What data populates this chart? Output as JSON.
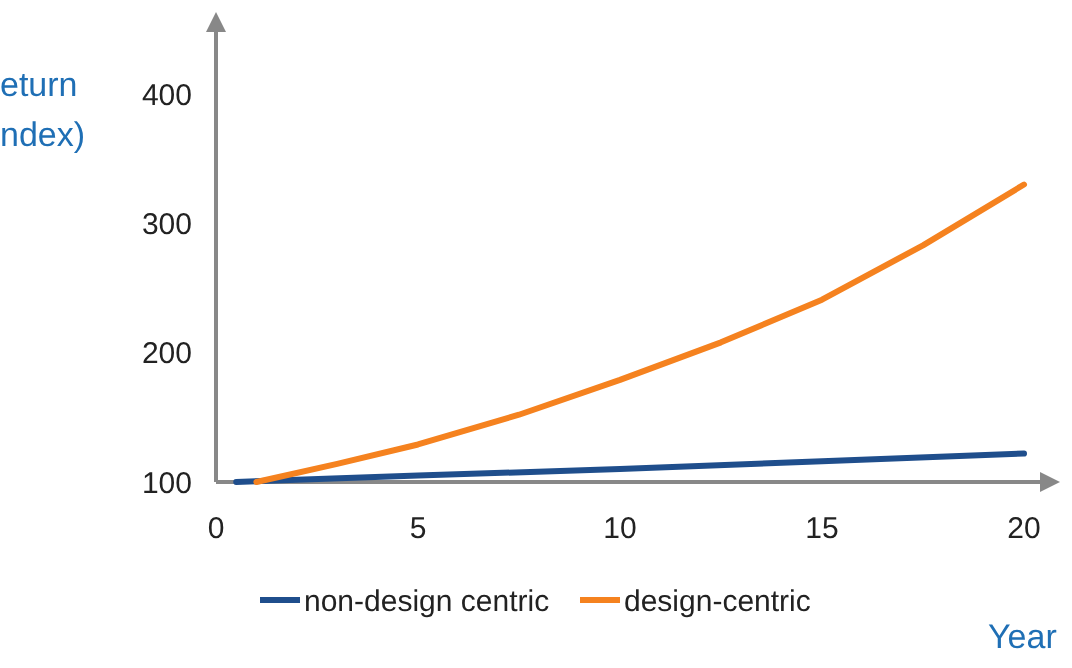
{
  "chart_data": {
    "type": "line",
    "xlabel": "Year",
    "ylabel": "eturn\nndex)",
    "xlim": [
      0,
      20
    ],
    "ylim": [
      100,
      400
    ],
    "xticks": [
      0,
      5,
      10,
      15,
      20
    ],
    "yticks": [
      100,
      200,
      300,
      400
    ],
    "legend": "bottom",
    "grid": false,
    "line_style": "solid",
    "series": [
      {
        "name": "non-design centric",
        "color": "#1f4e8c",
        "x": [
          0.5,
          5,
          10,
          15,
          20
        ],
        "values": [
          100,
          105,
          110,
          116,
          122
        ]
      },
      {
        "name": "design-centric",
        "color": "#f5821f",
        "x": [
          1,
          3,
          5,
          7.5,
          10,
          12.5,
          15,
          17.5,
          20
        ],
        "values": [
          100,
          114,
          129,
          152,
          179,
          208,
          241,
          283,
          330
        ]
      }
    ]
  }
}
